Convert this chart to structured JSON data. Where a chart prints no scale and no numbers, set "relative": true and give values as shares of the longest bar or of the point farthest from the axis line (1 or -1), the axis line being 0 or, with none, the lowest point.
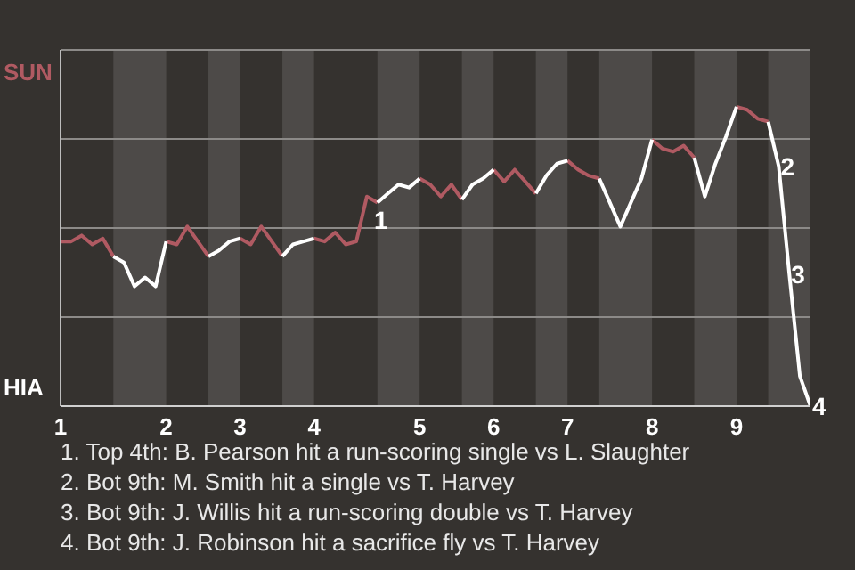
{
  "chart_data": {
    "type": "line",
    "relative": true,
    "categories": [
      "1",
      null,
      null,
      null,
      null,
      null,
      null,
      null,
      null,
      null,
      "2",
      null,
      null,
      null,
      null,
      null,
      null,
      "3",
      null,
      null,
      null,
      null,
      null,
      null,
      "4",
      null,
      null,
      null,
      null,
      null,
      null,
      null,
      null,
      null,
      "5",
      null,
      null,
      null,
      null,
      null,
      null,
      "6",
      null,
      null,
      null,
      null,
      null,
      null,
      "7",
      null,
      null,
      null,
      null,
      null,
      null,
      null,
      "8",
      null,
      null,
      null,
      null,
      null,
      null,
      null,
      "9",
      null,
      null,
      null,
      null,
      null,
      null,
      null
    ],
    "grid": "y",
    "legend": "left",
    "marker": "none",
    "series": [
      {
        "name": "SUN",
        "color": "#b05a62",
        "values": [
          0.55,
          0.55,
          0.57,
          0.54,
          0.56,
          0.5,
          null,
          null,
          null,
          null,
          0.55,
          0.54,
          0.6,
          0.55,
          0.5,
          null,
          null,
          0.56,
          0.54,
          0.6,
          0.55,
          0.5,
          null,
          null,
          0.56,
          0.55,
          0.58,
          0.54,
          0.55,
          0.7,
          0.68,
          null,
          null,
          null,
          0.76,
          0.74,
          0.7,
          0.74,
          0.69,
          null,
          null,
          0.79,
          0.75,
          0.79,
          0.75,
          0.71,
          null,
          null,
          0.82,
          0.79,
          0.77,
          0.76,
          null,
          null,
          null,
          null,
          0.89,
          0.86,
          0.85,
          0.87,
          0.83,
          null,
          null,
          null,
          1,
          0.99,
          0.96,
          0.95,
          null,
          null,
          null,
          null
        ]
      },
      {
        "name": "HIA",
        "color": "#ffffff",
        "values": [
          null,
          null,
          null,
          null,
          null,
          0.5,
          0.48,
          0.4,
          0.43,
          0.4,
          0.55,
          null,
          null,
          null,
          0.5,
          0.52,
          0.55,
          0.56,
          null,
          null,
          null,
          0.5,
          0.54,
          0.55,
          0.56,
          null,
          null,
          null,
          null,
          null,
          0.68,
          0.71,
          0.74,
          0.73,
          0.76,
          null,
          null,
          null,
          0.69,
          0.74,
          0.76,
          0.79,
          null,
          null,
          null,
          0.71,
          0.77,
          0.81,
          0.82,
          null,
          null,
          0.76,
          0.68,
          0.6,
          0.68,
          0.76,
          0.89,
          null,
          null,
          null,
          0.83,
          0.7,
          0.81,
          0.9,
          1,
          null,
          null,
          0.95,
          0.8,
          0.44,
          0.1,
          0
        ]
      }
    ],
    "annotations": [
      {
        "text": "1",
        "y": 0.7
      },
      {
        "text": "2",
        "y": 0.8
      },
      {
        "text": "3",
        "y": 0.44
      },
      {
        "text": "4",
        "y": 0
      },
      "1. Top 4th: B. Pearson hit a run-scoring single vs L. Slaughter",
      "2. Bot 9th: M. Smith hit a single vs T. Harvey",
      "3. Bot 9th: J. Willis hit a run-scoring double vs T. Harvey",
      "4. Bot 9th: J. Robinson hit a sacrifice fly vs T. Harvey"
    ]
  }
}
